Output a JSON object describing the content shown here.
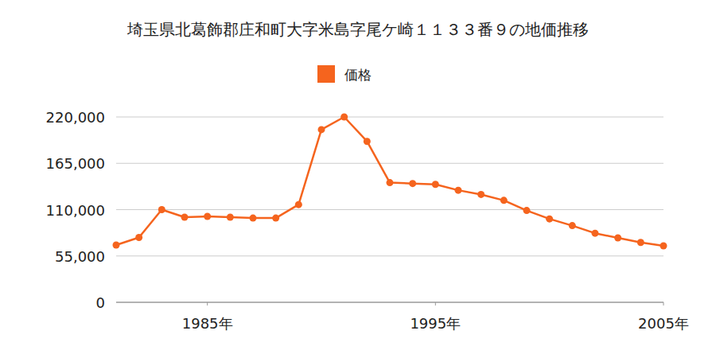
{
  "chart_data": {
    "type": "line",
    "title": "埼玉県北葛飾郡庄和町大字米島字尾ケ崎１１３３番９の地価推移",
    "x": [
      1981,
      1982,
      1983,
      1984,
      1985,
      1986,
      1987,
      1988,
      1989,
      1990,
      1991,
      1992,
      1993,
      1994,
      1995,
      1996,
      1997,
      1998,
      1999,
      2000,
      2001,
      2002,
      2003,
      2004,
      2005
    ],
    "series": [
      {
        "name": "価格",
        "color": "#f5641e",
        "marker": "circle",
        "values": [
          68000,
          77000,
          110000,
          101000,
          102000,
          101000,
          100000,
          100000,
          116000,
          205000,
          220000,
          191000,
          142000,
          141000,
          140000,
          133000,
          128000,
          121000,
          109000,
          99000,
          91000,
          82000,
          76500,
          71000,
          67000
        ]
      }
    ],
    "xlim": [
      1981,
      2005
    ],
    "xticks": [
      {
        "value": 1985,
        "label": "1985年"
      },
      {
        "value": 1995,
        "label": "1995年"
      },
      {
        "value": 2005,
        "label": "2005年"
      }
    ],
    "ylim": [
      0,
      220000
    ],
    "yticks": [
      0,
      {
        "value": 55000,
        "label": "55,000"
      },
      {
        "value": 110000,
        "label": "110,000"
      },
      {
        "value": 165000,
        "label": "165,000"
      },
      {
        "value": 220000,
        "label": "220,000"
      }
    ],
    "grid": true,
    "legend": "top"
  }
}
